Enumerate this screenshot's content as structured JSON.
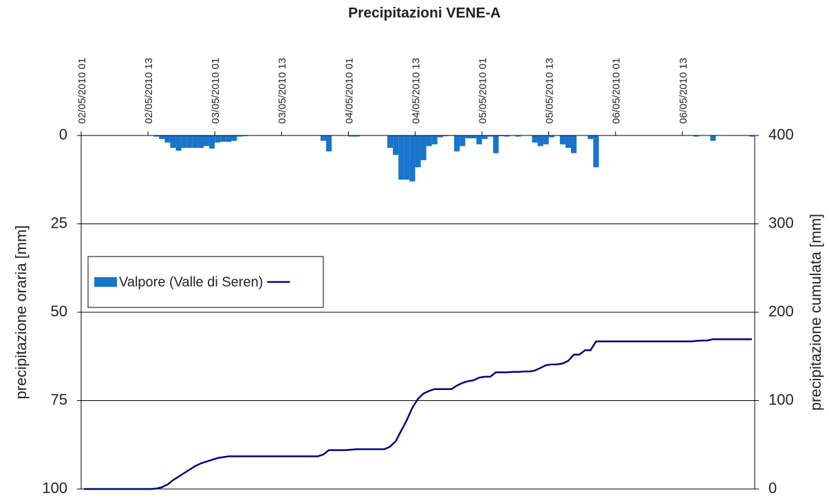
{
  "chart_data": {
    "type": "bar_line",
    "title": "Precipitazioni VENE-A",
    "y_label": "precipitazione oraria [mm]",
    "y2_label": "precipitazione cumulata [mm]",
    "categories": [
      "02/05/2010 01",
      null,
      null,
      null,
      null,
      null,
      null,
      null,
      null,
      null,
      null,
      null,
      "02/05/2010 13",
      null,
      null,
      null,
      null,
      null,
      null,
      null,
      null,
      null,
      null,
      null,
      "03/05/2010 01",
      null,
      null,
      null,
      null,
      null,
      null,
      null,
      null,
      null,
      null,
      null,
      "03/05/2010 13",
      null,
      null,
      null,
      null,
      null,
      null,
      null,
      null,
      null,
      null,
      null,
      "04/05/2010 01",
      null,
      null,
      null,
      null,
      null,
      null,
      null,
      null,
      null,
      null,
      null,
      "04/05/2010 13",
      null,
      null,
      null,
      null,
      null,
      null,
      null,
      null,
      null,
      null,
      null,
      "05/05/2010 01",
      null,
      null,
      null,
      null,
      null,
      null,
      null,
      null,
      null,
      null,
      null,
      "05/05/2010 13",
      null,
      null,
      null,
      null,
      null,
      null,
      null,
      null,
      null,
      null,
      null,
      "06/05/2010 01",
      null,
      null,
      null,
      null,
      null,
      null,
      null,
      null,
      null,
      null,
      null,
      "06/05/2010 13",
      null,
      null,
      null,
      null,
      null,
      null,
      null,
      null,
      null,
      null,
      null,
      null
    ],
    "series": [
      {
        "name": "Valpore (Valle di Seren)",
        "kind": "bar",
        "color": "#1874cd",
        "values": [
          0,
          0,
          0,
          0,
          0,
          0,
          0,
          0,
          0,
          0,
          0,
          0,
          0,
          0.3,
          1,
          2,
          3.5,
          4.3,
          3.5,
          3.5,
          3.5,
          3.5,
          3,
          3.7,
          2,
          1.8,
          1.8,
          1.5,
          0.3,
          0.2,
          0,
          0,
          0,
          0,
          0,
          0,
          0,
          0,
          0,
          0,
          0,
          0,
          0,
          1.5,
          4.5,
          0,
          0,
          0,
          0.3,
          0.3,
          0,
          0,
          0,
          0,
          0,
          3.5,
          5.5,
          12.5,
          12.5,
          13,
          9,
          7,
          3,
          2.5,
          0.5,
          0.2,
          0,
          4.5,
          3,
          0.8,
          0.8,
          2.5,
          1,
          0.3,
          5,
          0.2,
          0.3,
          0,
          0.3,
          0,
          0,
          2,
          3,
          2.5,
          0.5,
          0,
          2.5,
          3.5,
          5,
          0,
          0,
          1,
          9,
          0,
          0,
          0,
          0,
          0,
          0,
          0,
          0,
          0,
          0,
          0,
          0,
          0,
          0,
          0,
          0,
          0,
          0.3,
          0,
          0,
          1.5,
          0,
          0,
          0,
          0,
          0,
          0,
          0.3
        ]
      },
      {
        "kind": "line",
        "axis": "y2",
        "color": "#000080",
        "values": [
          0,
          0,
          0,
          0,
          0,
          0,
          0,
          0,
          0,
          0,
          0,
          0,
          0,
          0.5,
          2,
          5,
          10,
          14,
          18,
          22,
          26,
          29,
          31,
          33,
          35,
          36,
          37,
          37,
          37,
          37,
          37,
          37,
          37,
          37,
          37,
          37,
          37,
          37,
          37,
          37,
          37,
          37,
          37,
          39,
          44,
          44,
          44,
          44,
          44.5,
          45,
          45,
          45,
          45,
          45,
          45,
          48,
          54,
          66,
          78,
          92,
          102,
          108,
          111,
          113,
          113,
          113,
          113,
          117,
          120,
          122,
          123,
          126,
          127,
          127,
          132,
          132,
          132,
          132.5,
          132.5,
          133,
          133,
          134,
          137,
          140,
          141,
          141,
          142,
          145,
          152,
          152,
          157,
          157,
          167,
          167,
          167,
          167,
          167,
          167,
          167,
          167,
          167,
          167,
          167,
          167,
          167,
          167,
          167,
          167,
          167,
          167,
          167.5,
          168,
          168,
          169.5,
          169.5,
          169.5,
          169.5,
          169.5,
          169.5,
          169.5,
          169.5
        ]
      }
    ],
    "ylim": [
      0,
      100
    ],
    "y_inverted": true,
    "yticks": [
      0,
      25,
      50,
      75,
      100
    ],
    "y2lim": [
      0,
      400
    ],
    "y2ticks": [
      0,
      100,
      200,
      300,
      400
    ],
    "grid": true,
    "legend": "left"
  }
}
